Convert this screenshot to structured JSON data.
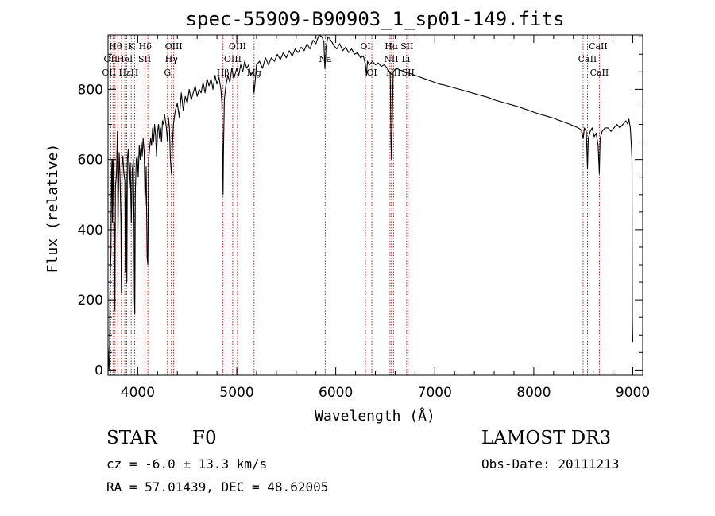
{
  "chart_data": {
    "type": "line",
    "title": "spec-55909-B90903_1_sp01-149.fits",
    "xlabel": "Wavelength (Å)",
    "ylabel": "Flux (relative)",
    "xlim": [
      3700,
      9100
    ],
    "ylim": [
      -15,
      955
    ],
    "x_ticks": [
      4000,
      5000,
      6000,
      7000,
      8000,
      9000
    ],
    "y_ticks": [
      0,
      200,
      400,
      600,
      800
    ],
    "x_minor_step": 200,
    "y_minor_step": 50,
    "series": [
      {
        "name": "spectrum",
        "color": "#000000",
        "points": [
          [
            3700,
            70
          ],
          [
            3705,
            30
          ],
          [
            3710,
            2
          ],
          [
            3715,
            40
          ],
          [
            3720,
            260
          ],
          [
            3725,
            300
          ],
          [
            3730,
            330
          ],
          [
            3735,
            560
          ],
          [
            3740,
            600
          ],
          [
            3745,
            420
          ],
          [
            3750,
            600
          ],
          [
            3755,
            560
          ],
          [
            3760,
            390
          ],
          [
            3765,
            420
          ],
          [
            3770,
            170
          ],
          [
            3775,
            520
          ],
          [
            3785,
            560
          ],
          [
            3795,
            680
          ],
          [
            3800,
            390
          ],
          [
            3805,
            500
          ],
          [
            3812,
            620
          ],
          [
            3820,
            560
          ],
          [
            3830,
            430
          ],
          [
            3835,
            220
          ],
          [
            3842,
            580
          ],
          [
            3850,
            610
          ],
          [
            3860,
            560
          ],
          [
            3870,
            540
          ],
          [
            3875,
            280
          ],
          [
            3882,
            560
          ],
          [
            3890,
            250
          ],
          [
            3895,
            600
          ],
          [
            3905,
            630
          ],
          [
            3915,
            520
          ],
          [
            3925,
            590
          ],
          [
            3935,
            420
          ],
          [
            3945,
            570
          ],
          [
            3955,
            600
          ],
          [
            3962,
            420
          ],
          [
            3966,
            210
          ],
          [
            3970,
            160
          ],
          [
            3975,
            500
          ],
          [
            3985,
            600
          ],
          [
            3995,
            610
          ],
          [
            4005,
            550
          ],
          [
            4015,
            640
          ],
          [
            4025,
            600
          ],
          [
            4035,
            650
          ],
          [
            4045,
            610
          ],
          [
            4055,
            660
          ],
          [
            4065,
            620
          ],
          [
            4075,
            470
          ],
          [
            4085,
            580
          ],
          [
            4095,
            320
          ],
          [
            4102,
            300
          ],
          [
            4110,
            600
          ],
          [
            4120,
            630
          ],
          [
            4130,
            660
          ],
          [
            4140,
            640
          ],
          [
            4150,
            690
          ],
          [
            4160,
            650
          ],
          [
            4170,
            700
          ],
          [
            4180,
            670
          ],
          [
            4190,
            610
          ],
          [
            4200,
            680
          ],
          [
            4210,
            700
          ],
          [
            4220,
            660
          ],
          [
            4230,
            690
          ],
          [
            4240,
            650
          ],
          [
            4250,
            710
          ],
          [
            4260,
            700
          ],
          [
            4270,
            730
          ],
          [
            4280,
            710
          ],
          [
            4290,
            690
          ],
          [
            4300,
            650
          ],
          [
            4310,
            720
          ],
          [
            4320,
            690
          ],
          [
            4330,
            600
          ],
          [
            4340,
            560
          ],
          [
            4345,
            580
          ],
          [
            4350,
            640
          ],
          [
            4360,
            700
          ],
          [
            4370,
            720
          ],
          [
            4380,
            740
          ],
          [
            4400,
            760
          ],
          [
            4420,
            720
          ],
          [
            4440,
            790
          ],
          [
            4460,
            740
          ],
          [
            4480,
            780
          ],
          [
            4500,
            760
          ],
          [
            4520,
            800
          ],
          [
            4540,
            770
          ],
          [
            4560,
            790
          ],
          [
            4580,
            810
          ],
          [
            4600,
            780
          ],
          [
            4620,
            800
          ],
          [
            4640,
            790
          ],
          [
            4660,
            820
          ],
          [
            4680,
            790
          ],
          [
            4700,
            830
          ],
          [
            4720,
            810
          ],
          [
            4740,
            830
          ],
          [
            4760,
            800
          ],
          [
            4780,
            840
          ],
          [
            4800,
            815
          ],
          [
            4820,
            835
          ],
          [
            4840,
            800
          ],
          [
            4850,
            760
          ],
          [
            4858,
            600
          ],
          [
            4862,
            500
          ],
          [
            4866,
            620
          ],
          [
            4875,
            770
          ],
          [
            4890,
            810
          ],
          [
            4910,
            840
          ],
          [
            4930,
            820
          ],
          [
            4950,
            860
          ],
          [
            4970,
            830
          ],
          [
            5000,
            860
          ],
          [
            5020,
            840
          ],
          [
            5040,
            870
          ],
          [
            5060,
            850
          ],
          [
            5080,
            880
          ],
          [
            5100,
            860
          ],
          [
            5120,
            870
          ],
          [
            5140,
            840
          ],
          [
            5160,
            850
          ],
          [
            5175,
            790
          ],
          [
            5185,
            820
          ],
          [
            5200,
            870
          ],
          [
            5230,
            880
          ],
          [
            5260,
            860
          ],
          [
            5290,
            890
          ],
          [
            5320,
            870
          ],
          [
            5350,
            890
          ],
          [
            5380,
            880
          ],
          [
            5410,
            900
          ],
          [
            5440,
            885
          ],
          [
            5470,
            905
          ],
          [
            5500,
            890
          ],
          [
            5530,
            910
          ],
          [
            5560,
            895
          ],
          [
            5590,
            915
          ],
          [
            5620,
            905
          ],
          [
            5650,
            920
          ],
          [
            5680,
            910
          ],
          [
            5710,
            930
          ],
          [
            5740,
            915
          ],
          [
            5770,
            940
          ],
          [
            5800,
            930
          ],
          [
            5830,
            960
          ],
          [
            5860,
            950
          ],
          [
            5880,
            935
          ],
          [
            5890,
            860
          ],
          [
            5896,
            880
          ],
          [
            5902,
            920
          ],
          [
            5920,
            950
          ],
          [
            5950,
            940
          ],
          [
            5980,
            925
          ],
          [
            6010,
            915
          ],
          [
            6040,
            930
          ],
          [
            6070,
            910
          ],
          [
            6100,
            920
          ],
          [
            6130,
            905
          ],
          [
            6160,
            915
          ],
          [
            6190,
            900
          ],
          [
            6220,
            905
          ],
          [
            6250,
            890
          ],
          [
            6280,
            895
          ],
          [
            6300,
            870
          ],
          [
            6310,
            840
          ],
          [
            6320,
            880
          ],
          [
            6340,
            870
          ],
          [
            6370,
            880
          ],
          [
            6400,
            870
          ],
          [
            6430,
            875
          ],
          [
            6460,
            865
          ],
          [
            6490,
            870
          ],
          [
            6520,
            860
          ],
          [
            6550,
            845
          ],
          [
            6558,
            650
          ],
          [
            6563,
            600
          ],
          [
            6570,
            700
          ],
          [
            6580,
            850
          ],
          [
            6610,
            860
          ],
          [
            6650,
            855
          ],
          [
            6700,
            850
          ],
          [
            6750,
            845
          ],
          [
            6800,
            840
          ],
          [
            6850,
            835
          ],
          [
            6900,
            830
          ],
          [
            6950,
            825
          ],
          [
            7000,
            820
          ],
          [
            7050,
            815
          ],
          [
            7100,
            812
          ],
          [
            7150,
            808
          ],
          [
            7200,
            804
          ],
          [
            7250,
            800
          ],
          [
            7300,
            796
          ],
          [
            7350,
            792
          ],
          [
            7400,
            788
          ],
          [
            7450,
            784
          ],
          [
            7500,
            780
          ],
          [
            7550,
            776
          ],
          [
            7600,
            770
          ],
          [
            7650,
            766
          ],
          [
            7700,
            762
          ],
          [
            7750,
            758
          ],
          [
            7800,
            754
          ],
          [
            7850,
            750
          ],
          [
            7900,
            745
          ],
          [
            7950,
            740
          ],
          [
            8000,
            735
          ],
          [
            8050,
            730
          ],
          [
            8100,
            726
          ],
          [
            8150,
            722
          ],
          [
            8200,
            718
          ],
          [
            8250,
            712
          ],
          [
            8300,
            707
          ],
          [
            8350,
            702
          ],
          [
            8400,
            696
          ],
          [
            8450,
            690
          ],
          [
            8480,
            684
          ],
          [
            8500,
            660
          ],
          [
            8510,
            690
          ],
          [
            8530,
            680
          ],
          [
            8542,
            575
          ],
          [
            8550,
            660
          ],
          [
            8570,
            680
          ],
          [
            8590,
            690
          ],
          [
            8610,
            665
          ],
          [
            8630,
            675
          ],
          [
            8650,
            640
          ],
          [
            8662,
            560
          ],
          [
            8670,
            660
          ],
          [
            8690,
            680
          ],
          [
            8720,
            690
          ],
          [
            8750,
            690
          ],
          [
            8780,
            680
          ],
          [
            8810,
            690
          ],
          [
            8840,
            700
          ],
          [
            8870,
            690
          ],
          [
            8900,
            700
          ],
          [
            8930,
            710
          ],
          [
            8950,
            700
          ],
          [
            8960,
            715
          ],
          [
            8975,
            690
          ],
          [
            8985,
            640
          ],
          [
            8992,
            600
          ],
          [
            8996,
            140
          ],
          [
            9000,
            80
          ]
        ]
      }
    ],
    "line_markers": {
      "color": "#b30000",
      "wavelengths": [
        3727,
        3750,
        3771,
        3798,
        3835,
        3869,
        3889,
        3934,
        3968,
        4072,
        4102,
        4300,
        4340,
        4363,
        4861,
        4959,
        5007,
        5175,
        5893,
        6300,
        6364,
        6548,
        6563,
        6583,
        6716,
        6731,
        8498,
        8542,
        8662
      ],
      "labels": [
        {
          "text": "Hθ",
          "wave": 3775,
          "row": 1
        },
        {
          "text": "K",
          "wave": 3934,
          "row": 1
        },
        {
          "text": "Hδ",
          "wave": 4075,
          "row": 1
        },
        {
          "text": "OIII",
          "wave": 4363,
          "row": 1
        },
        {
          "text": "OIII",
          "wave": 5007,
          "row": 1
        },
        {
          "text": "OI",
          "wave": 6300,
          "row": 1
        },
        {
          "text": "Hα",
          "wave": 6563,
          "row": 1
        },
        {
          "text": "SII",
          "wave": 6720,
          "row": 1
        },
        {
          "text": "CaII",
          "wave": 8650,
          "row": 1
        },
        {
          "text": "OII",
          "wave": 3727,
          "row": 2
        },
        {
          "text": "HeI",
          "wave": 3870,
          "row": 2
        },
        {
          "text": "SII",
          "wave": 4070,
          "row": 2
        },
        {
          "text": "Hγ",
          "wave": 4340,
          "row": 2
        },
        {
          "text": "OIII",
          "wave": 4959,
          "row": 2
        },
        {
          "text": "Na",
          "wave": 5893,
          "row": 2
        },
        {
          "text": "NII",
          "wave": 6560,
          "row": 2
        },
        {
          "text": "Li",
          "wave": 6708,
          "row": 2
        },
        {
          "text": "CaII",
          "wave": 8542,
          "row": 2
        },
        {
          "text": "OII",
          "wave": 3710,
          "row": 3
        },
        {
          "text": "Hε",
          "wave": 3870,
          "row": 3
        },
        {
          "text": "H",
          "wave": 3968,
          "row": 3
        },
        {
          "text": "G",
          "wave": 4300,
          "row": 3
        },
        {
          "text": "Hβ",
          "wave": 4861,
          "row": 3
        },
        {
          "text": "Mg",
          "wave": 5175,
          "row": 3
        },
        {
          "text": "OI",
          "wave": 6364,
          "row": 3
        },
        {
          "text": "NII",
          "wave": 6583,
          "row": 3
        },
        {
          "text": "SII",
          "wave": 6731,
          "row": 3
        },
        {
          "text": "CaII",
          "wave": 8662,
          "row": 3
        }
      ]
    }
  },
  "info": {
    "object_class": "STAR",
    "subclass": "F0",
    "survey": "LAMOST DR3",
    "redshift_line": "cz =  -6.0 ± 13.3 km/s",
    "obs_date": "Obs-Date: 20111213",
    "coords": "RA =  57.01439, DEC =  48.62005"
  }
}
